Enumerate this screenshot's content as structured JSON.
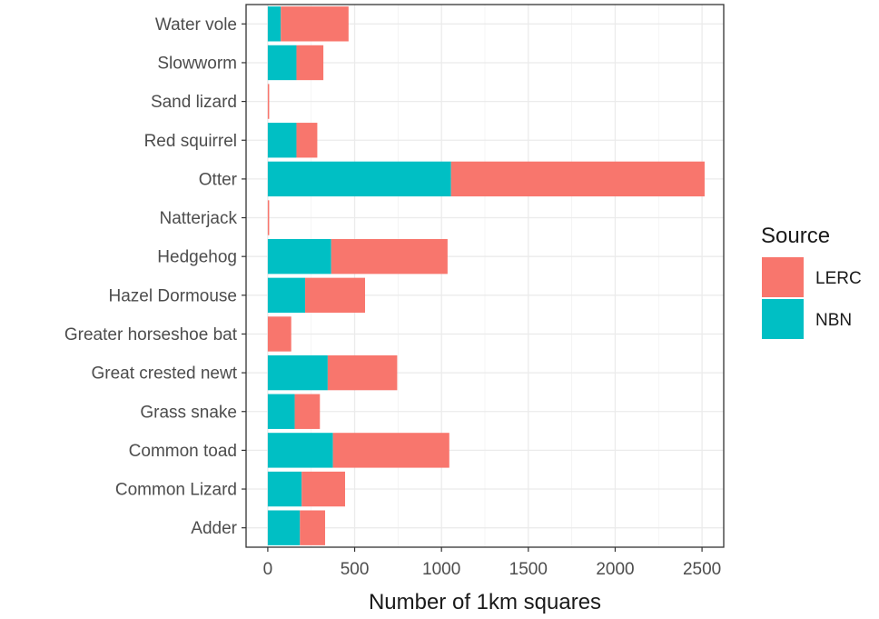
{
  "chart_data": {
    "type": "bar",
    "orientation": "horizontal",
    "stacked": true,
    "title": "",
    "xlabel": "Number of 1km squares",
    "ylabel": "",
    "xlim": [
      0,
      2500
    ],
    "xticks": [
      0,
      500,
      1000,
      1500,
      2000,
      2500
    ],
    "grid": true,
    "legend": {
      "title": "Source",
      "placement": "right"
    },
    "categories": [
      "Adder",
      "Common Lizard",
      "Common toad",
      "Grass snake",
      "Great crested newt",
      "Greater horseshoe bat",
      "Hazel Dormouse",
      "Hedgehog",
      "Natterjack",
      "Otter",
      "Red squirrel",
      "Sand lizard",
      "Slowworm",
      "Water vole"
    ],
    "series": [
      {
        "name": "NBN",
        "color": "#00BFC4",
        "values": [
          185,
          195,
          375,
          155,
          345,
          0,
          215,
          365,
          0,
          1055,
          165,
          0,
          165,
          75
        ]
      },
      {
        "name": "LERC",
        "color": "#F8766D",
        "values": [
          145,
          250,
          670,
          145,
          400,
          135,
          345,
          670,
          8,
          1460,
          120,
          8,
          155,
          390
        ]
      }
    ]
  }
}
